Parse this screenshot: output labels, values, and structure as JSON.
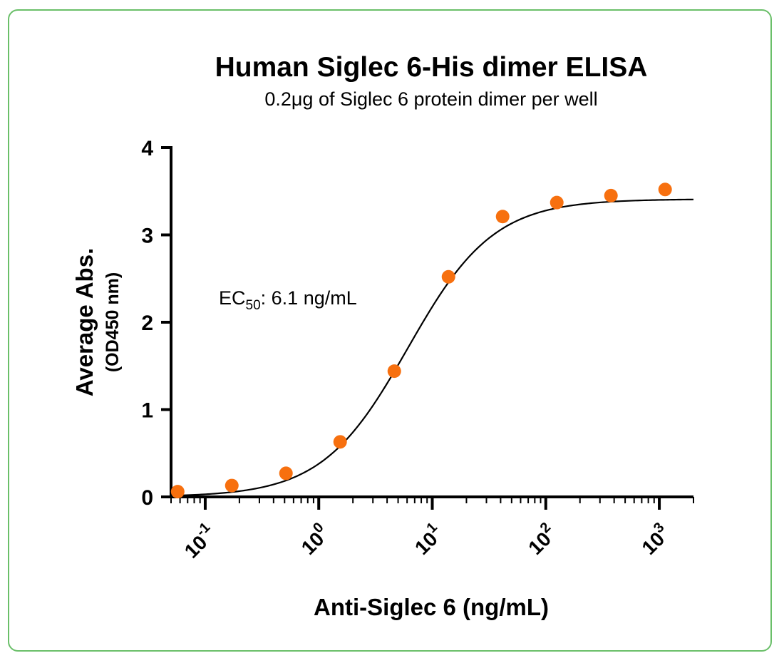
{
  "chart_data": {
    "type": "scatter",
    "title": "Human Siglec 6-His dimer ELISA",
    "subtitle": "0.2μg of Siglec 6 protein dimer per well",
    "xlabel": "Anti-Siglec 6 (ng/mL)",
    "ylabel": "Average Abs.",
    "ylabel_sub": "(OD450 nm)",
    "x_scale": "log",
    "xlim": [
      0.05,
      2000
    ],
    "ylim": [
      0,
      4
    ],
    "x_ticks": [
      {
        "base": "10",
        "exp": "-1",
        "value": 0.1
      },
      {
        "base": "10",
        "exp": "0",
        "value": 1
      },
      {
        "base": "10",
        "exp": "1",
        "value": 10
      },
      {
        "base": "10",
        "exp": "2",
        "value": 100
      },
      {
        "base": "10",
        "exp": "3",
        "value": 1000
      }
    ],
    "y_ticks": [
      "0",
      "1",
      "2",
      "3",
      "4"
    ],
    "series": [
      {
        "color": "#f7700f",
        "x": [
          0.0572,
          0.1715,
          0.5144,
          1.543,
          4.63,
          13.89,
          41.67,
          125,
          375,
          1125
        ],
        "y": [
          0.06,
          0.13,
          0.27,
          0.63,
          1.44,
          2.52,
          3.21,
          3.37,
          3.45,
          3.52
        ]
      }
    ],
    "fit": {
      "model": "4PL",
      "bottom": 0.0,
      "top": 3.41,
      "ec50": 6.1,
      "hill": 1.15,
      "color": "#000000"
    },
    "annotation": {
      "prefix": "EC",
      "sub": "50",
      "suffix": ": 6.1 ng/mL"
    },
    "grid": false,
    "legend": "none"
  },
  "colors": {
    "frame_border": "#6abf69",
    "marker": "#f7700f"
  }
}
